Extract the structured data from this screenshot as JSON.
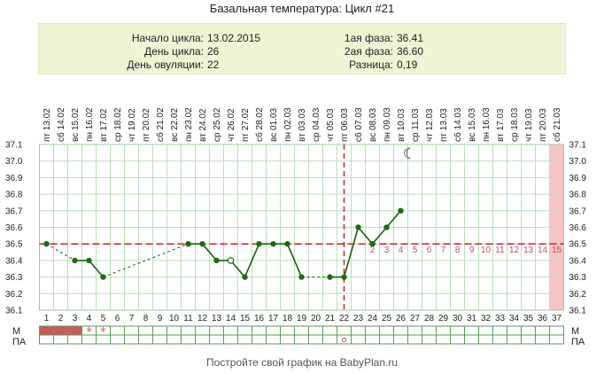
{
  "chart_data": {
    "type": "line",
    "title": "Базальная температура: Цикл #21",
    "days": [
      1,
      2,
      3,
      4,
      5,
      6,
      7,
      8,
      9,
      10,
      11,
      12,
      13,
      14,
      15,
      16,
      17,
      18,
      19,
      20,
      21,
      22,
      23,
      24,
      25,
      26,
      27,
      28,
      29,
      30,
      31,
      32,
      33,
      34,
      35,
      36,
      37
    ],
    "weekdays": [
      "пт",
      "сб",
      "вс",
      "пн",
      "вт",
      "ср",
      "чт",
      "пт",
      "сб",
      "вс",
      "пн",
      "вт",
      "ср",
      "чт",
      "пт",
      "сб",
      "вс",
      "пн",
      "вт",
      "ср",
      "чт",
      "пт",
      "сб",
      "вс",
      "пн",
      "вт",
      "ср",
      "чт",
      "пт",
      "сб",
      "вс",
      "пн",
      "вт",
      "ср",
      "чт",
      "пт",
      "сб"
    ],
    "dates": [
      "13.02",
      "14.02",
      "15.02",
      "16.02",
      "17.02",
      "18.02",
      "19.02",
      "20.02",
      "21.02",
      "22.02",
      "23.02",
      "24.02",
      "25.02",
      "26.02",
      "27.02",
      "28.02",
      "01.03",
      "02.03",
      "03.03",
      "04.03",
      "05.03",
      "06.03",
      "07.03",
      "08.03",
      "09.03",
      "10.03",
      "11.03",
      "12.03",
      "13.03",
      "14.03",
      "15.03",
      "16.03",
      "17.03",
      "18.03",
      "19.03",
      "20.03",
      "21.03"
    ],
    "y_ticks": [
      "36.1",
      "36.2",
      "36.3",
      "36.4",
      "36.5",
      "36.6",
      "36.7",
      "36.8",
      "36.9",
      "37.0",
      "37.1"
    ],
    "ylim": [
      36.1,
      37.1
    ],
    "grid": true,
    "points": [
      {
        "day": 1,
        "temp": 36.5,
        "link": "dashed"
      },
      {
        "day": 3,
        "temp": 36.4,
        "link": "dashed"
      },
      {
        "day": 4,
        "temp": 36.4,
        "link": "solid"
      },
      {
        "day": 5,
        "temp": 36.3,
        "link": "solid"
      },
      {
        "day": 11,
        "temp": 36.5,
        "link": "dashed"
      },
      {
        "day": 12,
        "temp": 36.5,
        "link": "solid"
      },
      {
        "day": 13,
        "temp": 36.4,
        "link": "solid"
      },
      {
        "day": 14,
        "temp": 36.4,
        "link": "solid",
        "hollow": true
      },
      {
        "day": 15,
        "temp": 36.3,
        "link": "solid"
      },
      {
        "day": 16,
        "temp": 36.5,
        "link": "solid"
      },
      {
        "day": 17,
        "temp": 36.5,
        "link": "solid"
      },
      {
        "day": 18,
        "temp": 36.5,
        "link": "solid"
      },
      {
        "day": 19,
        "temp": 36.3,
        "link": "solid"
      },
      {
        "day": 21,
        "temp": 36.3,
        "link": "dashed"
      },
      {
        "day": 22,
        "temp": 36.3,
        "link": "solid"
      },
      {
        "day": 23,
        "temp": 36.6,
        "link": "solid"
      },
      {
        "day": 24,
        "temp": 36.5,
        "link": "solid"
      },
      {
        "day": 25,
        "temp": 36.6,
        "link": "solid"
      },
      {
        "day": 26,
        "temp": 36.7,
        "link": "solid"
      }
    ],
    "coverline": 36.5,
    "ovulation_day": 22,
    "luteal_labels": [
      {
        "day": 24,
        "label": "2"
      },
      {
        "day": 25,
        "label": "3"
      },
      {
        "day": 26,
        "label": "4"
      },
      {
        "day": 27,
        "label": "5"
      },
      {
        "day": 28,
        "label": "6"
      },
      {
        "day": 29,
        "label": "7"
      },
      {
        "day": 30,
        "label": "8"
      },
      {
        "day": 31,
        "label": "9"
      },
      {
        "day": 32,
        "label": "10"
      },
      {
        "day": 33,
        "label": "11"
      },
      {
        "day": 34,
        "label": "12"
      },
      {
        "day": 35,
        "label": "13"
      },
      {
        "day": 36,
        "label": "14"
      },
      {
        "day": 37,
        "label": "15"
      }
    ],
    "highlight_day": 37,
    "moon_day": 26,
    "rows": {
      "m_label": "М",
      "pa_label": "ПА",
      "menses_days": [
        1,
        2,
        3
      ],
      "m_star_days": [
        4,
        5
      ],
      "pa_circle_days": [
        22
      ]
    }
  },
  "info": {
    "cycle_start_label": "Начало цикла:",
    "cycle_start_value": "13.02.2015",
    "cycle_day_label": "День цикла:",
    "cycle_day_value": "26",
    "ovulation_day_label": "День овуляции:",
    "ovulation_day_value": "22",
    "phase1_label": "1ая фаза:",
    "phase1_value": "36.41",
    "phase2_label": "2ая фаза:",
    "phase2_value": "36.60",
    "diff_label": "Разница:",
    "diff_value": "0,19"
  },
  "footer": "Постройте свой график на BabyPlan.ru",
  "colors": {
    "line": "#1e5a14",
    "marker": "#1e6b14",
    "coverline": "#c81e1e",
    "ovulation": "#c81e1e",
    "menses": "#c85a5a",
    "highlight": "#f6c4c4",
    "grid": "#bcdcbc",
    "luteal": "#c05060"
  }
}
